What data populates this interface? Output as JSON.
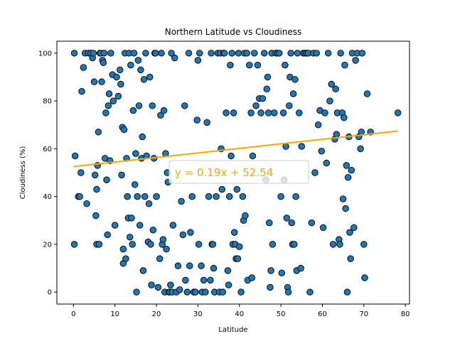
{
  "chart_data": {
    "type": "scatter",
    "title": "Northern Latitude vs Cloudiness",
    "xlabel": "Latitude",
    "ylabel": "Cloudiness (%)",
    "xlim": [
      -4,
      81
    ],
    "ylim": [
      -5,
      105
    ],
    "xticks": [
      "0",
      "10",
      "20",
      "30",
      "40",
      "50",
      "60",
      "70",
      "80"
    ],
    "yticks": [
      "0",
      "20",
      "40",
      "60",
      "80",
      "100"
    ],
    "point_color": "#1f77b4",
    "point_edge": "#000000",
    "line_color": "#ffa500",
    "regression": {
      "slope": 0.19,
      "intercept": 52.54,
      "x_range": [
        0,
        78.2
      ]
    },
    "equation_text": "y = 0.19x + 52.54",
    "points": [
      [
        0.2,
        100
      ],
      [
        0.2,
        20
      ],
      [
        0.4,
        57
      ],
      [
        1.2,
        40
      ],
      [
        1.5,
        40
      ],
      [
        1.8,
        50
      ],
      [
        2.0,
        84
      ],
      [
        2.4,
        94
      ],
      [
        2.8,
        100
      ],
      [
        3.2,
        37
      ],
      [
        3.6,
        100
      ],
      [
        4.2,
        100
      ],
      [
        4.6,
        98
      ],
      [
        4.8,
        100
      ],
      [
        5.0,
        88
      ],
      [
        5.2,
        49
      ],
      [
        5.4,
        32
      ],
      [
        5.6,
        20
      ],
      [
        5.6,
        43
      ],
      [
        5.8,
        53
      ],
      [
        6.0,
        67
      ],
      [
        6.2,
        20
      ],
      [
        6.4,
        100
      ],
      [
        6.6,
        100
      ],
      [
        6.8,
        88
      ],
      [
        7.0,
        97
      ],
      [
        7.2,
        96
      ],
      [
        7.4,
        100
      ],
      [
        7.6,
        56
      ],
      [
        7.8,
        75
      ],
      [
        8.0,
        47
      ],
      [
        8.2,
        24
      ],
      [
        8.4,
        78
      ],
      [
        8.6,
        83
      ],
      [
        8.8,
        55
      ],
      [
        9.0,
        100
      ],
      [
        9.4,
        91
      ],
      [
        9.6,
        80
      ],
      [
        10.0,
        28
      ],
      [
        10.4,
        90
      ],
      [
        10.8,
        82
      ],
      [
        11.2,
        93
      ],
      [
        11.4,
        87
      ],
      [
        11.6,
        49
      ],
      [
        11.8,
        69
      ],
      [
        12.0,
        12
      ],
      [
        12.0,
        18
      ],
      [
        12.2,
        68
      ],
      [
        12.4,
        100
      ],
      [
        12.6,
        14
      ],
      [
        12.8,
        56
      ],
      [
        13.0,
        40
      ],
      [
        13.2,
        31
      ],
      [
        13.4,
        100
      ],
      [
        13.6,
        23
      ],
      [
        13.8,
        95
      ],
      [
        14.0,
        31
      ],
      [
        14.2,
        20
      ],
      [
        14.4,
        76
      ],
      [
        14.6,
        100
      ],
      [
        14.8,
        45
      ],
      [
        15.0,
        58
      ],
      [
        15.2,
        0
      ],
      [
        15.4,
        40
      ],
      [
        15.6,
        97
      ],
      [
        15.8,
        78
      ],
      [
        16.0,
        28
      ],
      [
        16.2,
        93
      ],
      [
        16.4,
        56
      ],
      [
        16.6,
        65
      ],
      [
        16.8,
        9
      ],
      [
        17.0,
        89
      ],
      [
        17.2,
        40
      ],
      [
        17.4,
        100
      ],
      [
        17.6,
        57
      ],
      [
        18.0,
        21
      ],
      [
        18.2,
        37
      ],
      [
        18.4,
        90
      ],
      [
        18.6,
        20
      ],
      [
        18.8,
        3
      ],
      [
        19.0,
        78
      ],
      [
        19.2,
        26
      ],
      [
        19.4,
        56
      ],
      [
        19.6,
        100
      ],
      [
        19.8,
        100
      ],
      [
        20.0,
        40
      ],
      [
        20.4,
        2
      ],
      [
        20.8,
        14
      ],
      [
        21.0,
        74
      ],
      [
        21.2,
        100
      ],
      [
        21.4,
        20
      ],
      [
        21.6,
        22
      ],
      [
        21.8,
        76
      ],
      [
        22.0,
        0
      ],
      [
        22.2,
        58
      ],
      [
        22.4,
        18
      ],
      [
        22.6,
        50
      ],
      [
        22.8,
        46
      ],
      [
        23.0,
        0
      ],
      [
        23.2,
        0
      ],
      [
        23.4,
        3
      ],
      [
        23.6,
        100
      ],
      [
        23.8,
        0
      ],
      [
        24.0,
        28
      ],
      [
        24.4,
        98
      ],
      [
        24.8,
        0
      ],
      [
        25.2,
        11
      ],
      [
        25.6,
        1
      ],
      [
        26.0,
        38
      ],
      [
        26.4,
        24
      ],
      [
        26.8,
        78
      ],
      [
        27.0,
        5
      ],
      [
        27.4,
        0
      ],
      [
        27.8,
        100
      ],
      [
        28.0,
        11
      ],
      [
        28.2,
        25
      ],
      [
        28.6,
        40
      ],
      [
        29.0,
        0
      ],
      [
        29.4,
        0
      ],
      [
        29.8,
        72
      ],
      [
        30.0,
        97
      ],
      [
        30.2,
        20
      ],
      [
        30.4,
        100
      ],
      [
        30.8,
        11
      ],
      [
        31.0,
        0
      ],
      [
        31.4,
        5
      ],
      [
        31.8,
        0
      ],
      [
        32.2,
        71
      ],
      [
        32.6,
        40
      ],
      [
        33.0,
        5
      ],
      [
        33.2,
        100
      ],
      [
        33.4,
        20
      ],
      [
        33.6,
        20
      ],
      [
        33.8,
        10
      ],
      [
        34.0,
        0
      ],
      [
        34.4,
        40
      ],
      [
        34.8,
        100
      ],
      [
        35.2,
        0
      ],
      [
        35.4,
        100
      ],
      [
        35.6,
        60
      ],
      [
        35.8,
        43
      ],
      [
        36.0,
        0
      ],
      [
        36.2,
        100
      ],
      [
        36.4,
        100
      ],
      [
        36.8,
        75
      ],
      [
        37.2,
        9
      ],
      [
        37.4,
        3
      ],
      [
        37.6,
        40
      ],
      [
        37.8,
        95
      ],
      [
        38.0,
        57
      ],
      [
        38.2,
        100
      ],
      [
        38.4,
        20
      ],
      [
        38.6,
        75
      ],
      [
        38.8,
        25
      ],
      [
        39.0,
        20
      ],
      [
        39.2,
        14
      ],
      [
        39.4,
        43
      ],
      [
        39.6,
        14
      ],
      [
        39.8,
        100
      ],
      [
        40.0,
        19
      ],
      [
        40.4,
        0
      ],
      [
        40.8,
        40
      ],
      [
        41.0,
        30
      ],
      [
        41.2,
        100
      ],
      [
        41.4,
        32
      ],
      [
        41.8,
        100
      ],
      [
        42.0,
        5
      ],
      [
        42.4,
        95
      ],
      [
        42.8,
        75
      ],
      [
        43.0,
        6
      ],
      [
        43.2,
        57
      ],
      [
        43.6,
        100
      ],
      [
        44.0,
        78
      ],
      [
        44.4,
        95
      ],
      [
        44.8,
        81
      ],
      [
        45.2,
        75
      ],
      [
        45.6,
        81
      ],
      [
        46.0,
        100
      ],
      [
        46.4,
        47
      ],
      [
        46.6,
        85
      ],
      [
        46.8,
        90
      ],
      [
        47.0,
        75
      ],
      [
        47.2,
        29
      ],
      [
        47.4,
        2
      ],
      [
        47.6,
        9
      ],
      [
        47.8,
        100
      ],
      [
        48.0,
        20
      ],
      [
        48.4,
        75
      ],
      [
        48.8,
        100
      ],
      [
        49.2,
        100
      ],
      [
        49.6,
        100
      ],
      [
        50.0,
        40
      ],
      [
        50.2,
        8
      ],
      [
        50.6,
        75
      ],
      [
        50.8,
        47
      ],
      [
        51.0,
        95
      ],
      [
        51.2,
        61
      ],
      [
        51.4,
        31
      ],
      [
        51.6,
        2
      ],
      [
        51.8,
        0
      ],
      [
        52.0,
        78
      ],
      [
        52.2,
        90
      ],
      [
        52.4,
        100
      ],
      [
        52.6,
        29
      ],
      [
        52.8,
        20
      ],
      [
        53.0,
        83
      ],
      [
        53.2,
        20
      ],
      [
        53.4,
        89
      ],
      [
        53.6,
        40
      ],
      [
        53.8,
        9
      ],
      [
        54.0,
        100
      ],
      [
        54.4,
        75
      ],
      [
        54.8,
        10
      ],
      [
        55.0,
        61
      ],
      [
        55.4,
        100
      ],
      [
        55.8,
        100
      ],
      [
        56.2,
        100
      ],
      [
        56.6,
        100
      ],
      [
        57.0,
        0
      ],
      [
        57.4,
        29
      ],
      [
        57.8,
        100
      ],
      [
        58.2,
        50
      ],
      [
        58.6,
        100
      ],
      [
        59.0,
        70
      ],
      [
        59.4,
        76
      ],
      [
        59.8,
        59
      ],
      [
        60.2,
        27
      ],
      [
        60.6,
        75
      ],
      [
        61.0,
        54
      ],
      [
        61.4,
        100
      ],
      [
        61.8,
        80
      ],
      [
        62.2,
        87
      ],
      [
        62.6,
        20
      ],
      [
        63.0,
        64
      ],
      [
        63.2,
        85
      ],
      [
        63.4,
        66
      ],
      [
        63.6,
        75
      ],
      [
        64.0,
        22
      ],
      [
        64.2,
        20
      ],
      [
        64.4,
        100
      ],
      [
        64.8,
        75
      ],
      [
        65.0,
        39
      ],
      [
        65.2,
        73
      ],
      [
        65.4,
        95
      ],
      [
        65.6,
        35
      ],
      [
        65.8,
        53
      ],
      [
        66.0,
        0
      ],
      [
        66.2,
        48
      ],
      [
        66.4,
        65
      ],
      [
        66.6,
        25
      ],
      [
        66.8,
        14
      ],
      [
        67.0,
        51
      ],
      [
        67.2,
        100
      ],
      [
        67.6,
        27
      ],
      [
        68.0,
        97
      ],
      [
        68.4,
        100
      ],
      [
        68.8,
        65
      ],
      [
        69.2,
        60
      ],
      [
        69.4,
        67
      ],
      [
        69.6,
        100
      ],
      [
        70.0,
        20
      ],
      [
        70.2,
        6
      ],
      [
        70.8,
        83
      ],
      [
        71.6,
        67
      ],
      [
        78.2,
        75
      ]
    ]
  }
}
